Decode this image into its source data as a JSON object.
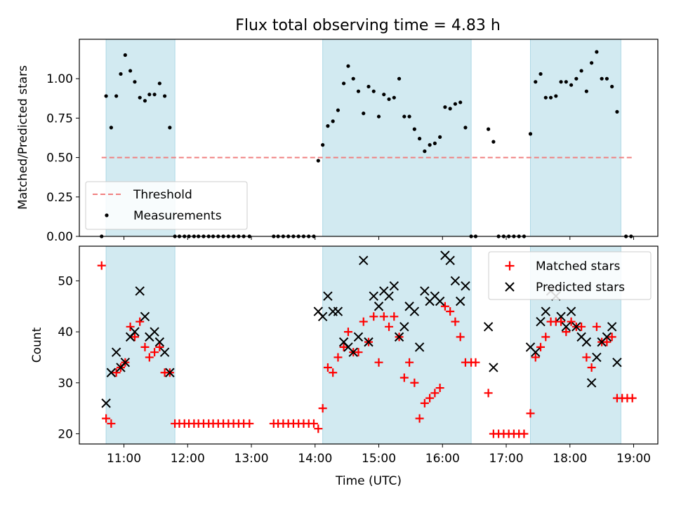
{
  "chart_data": [
    {
      "type": "scatter",
      "title": "Flux total observing time = 4.83 h",
      "xlabel": "",
      "ylabel": "Matched/Predicted stars",
      "xlim": [
        10.3,
        19.38
      ],
      "ylim": [
        0,
        1.25
      ],
      "xticks": [
        "11:00",
        "12:00",
        "13:00",
        "14:00",
        "15:00",
        "16:00",
        "17:00",
        "18:00",
        "19:00"
      ],
      "yticks": [
        "0.00",
        "0.25",
        "0.50",
        "0.75",
        "1.00"
      ],
      "yticks_values": [
        0,
        0.25,
        0.5,
        0.75,
        1.0
      ],
      "shaded_intervals": [
        [
          10.72,
          11.8
        ],
        [
          14.12,
          16.45
        ],
        [
          17.38,
          18.8
        ]
      ],
      "shade_color": "#add8e6",
      "threshold": {
        "name": "Threshold",
        "y": 0.5,
        "x_range": [
          10.65,
          18.98
        ],
        "color": "#f08080"
      },
      "measurements": {
        "name": "Measurements",
        "color": "#000000",
        "points": [
          [
            10.65,
            0.0
          ],
          [
            10.72,
            0.89
          ],
          [
            10.8,
            0.69
          ],
          [
            10.88,
            0.89
          ],
          [
            10.95,
            1.03
          ],
          [
            11.02,
            1.15
          ],
          [
            11.1,
            1.05
          ],
          [
            11.17,
            0.98
          ],
          [
            11.25,
            0.88
          ],
          [
            11.33,
            0.86
          ],
          [
            11.4,
            0.9
          ],
          [
            11.48,
            0.9
          ],
          [
            11.56,
            0.97
          ],
          [
            11.64,
            0.89
          ],
          [
            11.72,
            0.69
          ],
          [
            11.8,
            0.0
          ],
          [
            11.87,
            0.0
          ],
          [
            11.95,
            0.0
          ],
          [
            12.02,
            0.0
          ],
          [
            12.1,
            0.0
          ],
          [
            12.17,
            0.0
          ],
          [
            12.25,
            0.0
          ],
          [
            12.33,
            0.0
          ],
          [
            12.4,
            0.0
          ],
          [
            12.48,
            0.0
          ],
          [
            12.56,
            0.0
          ],
          [
            12.64,
            0.0
          ],
          [
            12.72,
            0.0
          ],
          [
            12.8,
            0.0
          ],
          [
            12.88,
            0.0
          ],
          [
            12.97,
            0.0
          ],
          [
            13.35,
            0.0
          ],
          [
            13.42,
            0.0
          ],
          [
            13.5,
            0.0
          ],
          [
            13.58,
            0.0
          ],
          [
            13.66,
            0.0
          ],
          [
            13.74,
            0.0
          ],
          [
            13.82,
            0.0
          ],
          [
            13.9,
            0.0
          ],
          [
            13.98,
            0.0
          ],
          [
            14.05,
            0.48
          ],
          [
            14.12,
            0.58
          ],
          [
            14.2,
            0.7
          ],
          [
            14.28,
            0.73
          ],
          [
            14.36,
            0.8
          ],
          [
            14.45,
            0.97
          ],
          [
            14.52,
            1.08
          ],
          [
            14.6,
            1.0
          ],
          [
            14.68,
            0.92
          ],
          [
            14.76,
            0.78
          ],
          [
            14.84,
            0.95
          ],
          [
            14.92,
            0.92
          ],
          [
            15.0,
            0.76
          ],
          [
            15.08,
            0.9
          ],
          [
            15.16,
            0.87
          ],
          [
            15.24,
            0.88
          ],
          [
            15.32,
            1.0
          ],
          [
            15.4,
            0.76
          ],
          [
            15.48,
            0.76
          ],
          [
            15.56,
            0.68
          ],
          [
            15.64,
            0.62
          ],
          [
            15.72,
            0.54
          ],
          [
            15.8,
            0.58
          ],
          [
            15.88,
            0.59
          ],
          [
            15.96,
            0.63
          ],
          [
            16.04,
            0.82
          ],
          [
            16.12,
            0.81
          ],
          [
            16.2,
            0.84
          ],
          [
            16.28,
            0.85
          ],
          [
            16.36,
            0.69
          ],
          [
            16.45,
            0.0
          ],
          [
            16.52,
            0.0
          ],
          [
            16.72,
            0.68
          ],
          [
            16.8,
            0.6
          ],
          [
            16.88,
            0.0
          ],
          [
            16.96,
            0.0
          ],
          [
            17.04,
            0.0
          ],
          [
            17.12,
            0.0
          ],
          [
            17.2,
            0.0
          ],
          [
            17.28,
            0.0
          ],
          [
            17.38,
            0.65
          ],
          [
            17.46,
            0.98
          ],
          [
            17.54,
            1.03
          ],
          [
            17.62,
            0.88
          ],
          [
            17.7,
            0.88
          ],
          [
            17.78,
            0.89
          ],
          [
            17.86,
            0.98
          ],
          [
            17.94,
            0.98
          ],
          [
            18.02,
            0.96
          ],
          [
            18.1,
            1.0
          ],
          [
            18.18,
            1.05
          ],
          [
            18.26,
            0.92
          ],
          [
            18.34,
            1.1
          ],
          [
            18.42,
            1.17
          ],
          [
            18.5,
            1.0
          ],
          [
            18.58,
            1.0
          ],
          [
            18.66,
            0.95
          ],
          [
            18.74,
            0.79
          ],
          [
            18.88,
            0.0
          ],
          [
            18.96,
            0.0
          ]
        ]
      },
      "legend": {
        "position": "lower left",
        "entries": [
          "Threshold",
          "Measurements"
        ]
      },
      "grid": false
    },
    {
      "type": "scatter",
      "title": "",
      "xlabel": "Time (UTC)",
      "ylabel": "Count",
      "xlim": [
        10.3,
        19.38
      ],
      "ylim": [
        18,
        56.8
      ],
      "xticks": [
        "11:00",
        "12:00",
        "13:00",
        "14:00",
        "15:00",
        "16:00",
        "17:00",
        "18:00",
        "19:00"
      ],
      "xticks_values": [
        11,
        12,
        13,
        14,
        15,
        16,
        17,
        18,
        19
      ],
      "yticks": [
        "20",
        "30",
        "40",
        "50"
      ],
      "yticks_values": [
        20,
        30,
        40,
        50
      ],
      "shaded_intervals": [
        [
          10.72,
          11.8
        ],
        [
          14.12,
          16.45
        ],
        [
          17.38,
          18.8
        ]
      ],
      "shade_color": "#add8e6",
      "series": [
        {
          "name": "Matched stars",
          "marker": "+",
          "color": "#ff0000",
          "points": [
            [
              10.65,
              53
            ],
            [
              10.72,
              23
            ],
            [
              10.8,
              22
            ],
            [
              10.88,
              32
            ],
            [
              10.95,
              33
            ],
            [
              11.02,
              34
            ],
            [
              11.1,
              41
            ],
            [
              11.17,
              39
            ],
            [
              11.25,
              42
            ],
            [
              11.33,
              37
            ],
            [
              11.4,
              35
            ],
            [
              11.48,
              36
            ],
            [
              11.56,
              37
            ],
            [
              11.64,
              32
            ],
            [
              11.72,
              32
            ],
            [
              11.8,
              22
            ],
            [
              11.87,
              22
            ],
            [
              11.95,
              22
            ],
            [
              12.02,
              22
            ],
            [
              12.1,
              22
            ],
            [
              12.17,
              22
            ],
            [
              12.25,
              22
            ],
            [
              12.33,
              22
            ],
            [
              12.4,
              22
            ],
            [
              12.48,
              22
            ],
            [
              12.56,
              22
            ],
            [
              12.64,
              22
            ],
            [
              12.72,
              22
            ],
            [
              12.8,
              22
            ],
            [
              12.88,
              22
            ],
            [
              12.97,
              22
            ],
            [
              13.35,
              22
            ],
            [
              13.42,
              22
            ],
            [
              13.5,
              22
            ],
            [
              13.58,
              22
            ],
            [
              13.66,
              22
            ],
            [
              13.74,
              22
            ],
            [
              13.82,
              22
            ],
            [
              13.9,
              22
            ],
            [
              13.98,
              22
            ],
            [
              14.05,
              21
            ],
            [
              14.12,
              25
            ],
            [
              14.2,
              33
            ],
            [
              14.28,
              32
            ],
            [
              14.36,
              35
            ],
            [
              14.45,
              37
            ],
            [
              14.52,
              40
            ],
            [
              14.6,
              36
            ],
            [
              14.68,
              36
            ],
            [
              14.76,
              42
            ],
            [
              14.84,
              38
            ],
            [
              14.92,
              43
            ],
            [
              15.0,
              34
            ],
            [
              15.08,
              43
            ],
            [
              15.16,
              41
            ],
            [
              15.24,
              43
            ],
            [
              15.32,
              39
            ],
            [
              15.4,
              31
            ],
            [
              15.48,
              34
            ],
            [
              15.56,
              30
            ],
            [
              15.64,
              23
            ],
            [
              15.72,
              26
            ],
            [
              15.8,
              27
            ],
            [
              15.88,
              28
            ],
            [
              15.96,
              29
            ],
            [
              16.04,
              45
            ],
            [
              16.12,
              44
            ],
            [
              16.2,
              42
            ],
            [
              16.28,
              39
            ],
            [
              16.36,
              34
            ],
            [
              16.45,
              34
            ],
            [
              16.52,
              34
            ],
            [
              16.72,
              28
            ],
            [
              16.8,
              20
            ],
            [
              16.88,
              20
            ],
            [
              16.96,
              20
            ],
            [
              17.04,
              20
            ],
            [
              17.12,
              20
            ],
            [
              17.2,
              20
            ],
            [
              17.28,
              20
            ],
            [
              17.38,
              24
            ],
            [
              17.46,
              35
            ],
            [
              17.54,
              37
            ],
            [
              17.62,
              39
            ],
            [
              17.7,
              42
            ],
            [
              17.78,
              42
            ],
            [
              17.86,
              42
            ],
            [
              17.94,
              40
            ],
            [
              18.02,
              42
            ],
            [
              18.1,
              41
            ],
            [
              18.18,
              41
            ],
            [
              18.26,
              35
            ],
            [
              18.34,
              33
            ],
            [
              18.42,
              41
            ],
            [
              18.5,
              38
            ],
            [
              18.58,
              38
            ],
            [
              18.66,
              39
            ],
            [
              18.74,
              27
            ],
            [
              18.82,
              27
            ],
            [
              18.9,
              27
            ],
            [
              18.98,
              27
            ]
          ]
        },
        {
          "name": "Predicted stars",
          "marker": "x",
          "color": "#000000",
          "points": [
            [
              10.72,
              26
            ],
            [
              10.8,
              32
            ],
            [
              10.88,
              36
            ],
            [
              10.95,
              33
            ],
            [
              11.02,
              34
            ],
            [
              11.1,
              39
            ],
            [
              11.17,
              40
            ],
            [
              11.25,
              48
            ],
            [
              11.33,
              43
            ],
            [
              11.4,
              39
            ],
            [
              11.48,
              40
            ],
            [
              11.56,
              38
            ],
            [
              11.64,
              36
            ],
            [
              11.72,
              32
            ],
            [
              14.05,
              44
            ],
            [
              14.12,
              43
            ],
            [
              14.2,
              47
            ],
            [
              14.28,
              44
            ],
            [
              14.36,
              44
            ],
            [
              14.45,
              38
            ],
            [
              14.52,
              37
            ],
            [
              14.6,
              36
            ],
            [
              14.68,
              39
            ],
            [
              14.76,
              54
            ],
            [
              14.84,
              38
            ],
            [
              14.92,
              47
            ],
            [
              15.0,
              45
            ],
            [
              15.08,
              48
            ],
            [
              15.16,
              47
            ],
            [
              15.24,
              49
            ],
            [
              15.32,
              39
            ],
            [
              15.4,
              41
            ],
            [
              15.48,
              45
            ],
            [
              15.56,
              44
            ],
            [
              15.64,
              37
            ],
            [
              15.72,
              48
            ],
            [
              15.8,
              46
            ],
            [
              15.88,
              47
            ],
            [
              15.96,
              46
            ],
            [
              16.04,
              55
            ],
            [
              16.12,
              54
            ],
            [
              16.2,
              50
            ],
            [
              16.28,
              46
            ],
            [
              16.36,
              49
            ],
            [
              16.72,
              41
            ],
            [
              16.8,
              33
            ],
            [
              17.38,
              37
            ],
            [
              17.46,
              36
            ],
            [
              17.54,
              42
            ],
            [
              17.62,
              44
            ],
            [
              17.7,
              48
            ],
            [
              17.78,
              47
            ],
            [
              17.86,
              43
            ],
            [
              17.94,
              41
            ],
            [
              18.02,
              44
            ],
            [
              18.1,
              41
            ],
            [
              18.18,
              39
            ],
            [
              18.26,
              38
            ],
            [
              18.34,
              30
            ],
            [
              18.42,
              35
            ],
            [
              18.5,
              38
            ],
            [
              18.58,
              39
            ],
            [
              18.66,
              41
            ],
            [
              18.74,
              34
            ]
          ]
        }
      ],
      "legend": {
        "position": "upper right",
        "entries": [
          "Matched stars",
          "Predicted stars"
        ]
      },
      "grid": false
    }
  ]
}
